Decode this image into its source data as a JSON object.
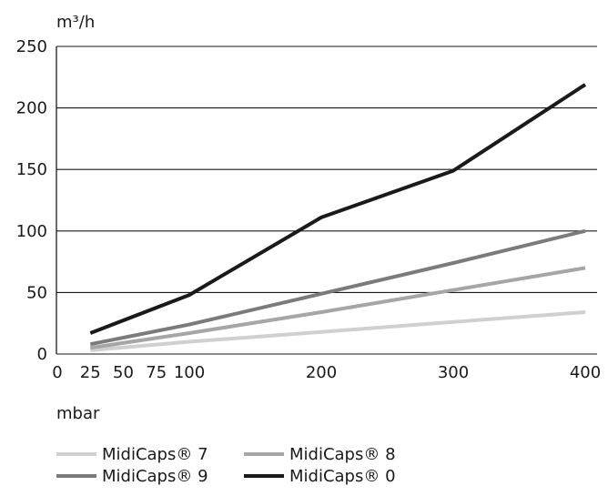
{
  "chart_data": {
    "type": "line",
    "y_unit_label": "m³/h",
    "x_unit_label": "mbar",
    "x_ticks": [
      0,
      25,
      50,
      75,
      100,
      200,
      300,
      400
    ],
    "y_ticks": [
      0,
      50,
      100,
      150,
      200,
      250
    ],
    "xlim": [
      0,
      410
    ],
    "ylim": [
      0,
      250
    ],
    "grid": "horizontal",
    "legend_position": "bottom",
    "series": [
      {
        "name": "MidiCaps® 7",
        "color": "#d0d0d0",
        "points": [
          [
            25,
            3
          ],
          [
            100,
            10
          ],
          [
            200,
            18
          ],
          [
            300,
            26
          ],
          [
            400,
            34
          ]
        ]
      },
      {
        "name": "MidiCaps® 8",
        "color": "#a6a6a6",
        "points": [
          [
            25,
            5
          ],
          [
            100,
            17
          ],
          [
            200,
            34
          ],
          [
            300,
            52
          ],
          [
            400,
            70
          ]
        ]
      },
      {
        "name": "MidiCaps® 9",
        "color": "#7b7b7b",
        "points": [
          [
            25,
            8
          ],
          [
            100,
            24
          ],
          [
            200,
            49
          ],
          [
            300,
            74
          ],
          [
            400,
            100
          ]
        ]
      },
      {
        "name": "MidiCaps® 0",
        "color": "#1a1a1a",
        "points": [
          [
            25,
            17
          ],
          [
            100,
            48
          ],
          [
            200,
            111
          ],
          [
            300,
            149
          ],
          [
            400,
            219
          ]
        ]
      }
    ]
  }
}
